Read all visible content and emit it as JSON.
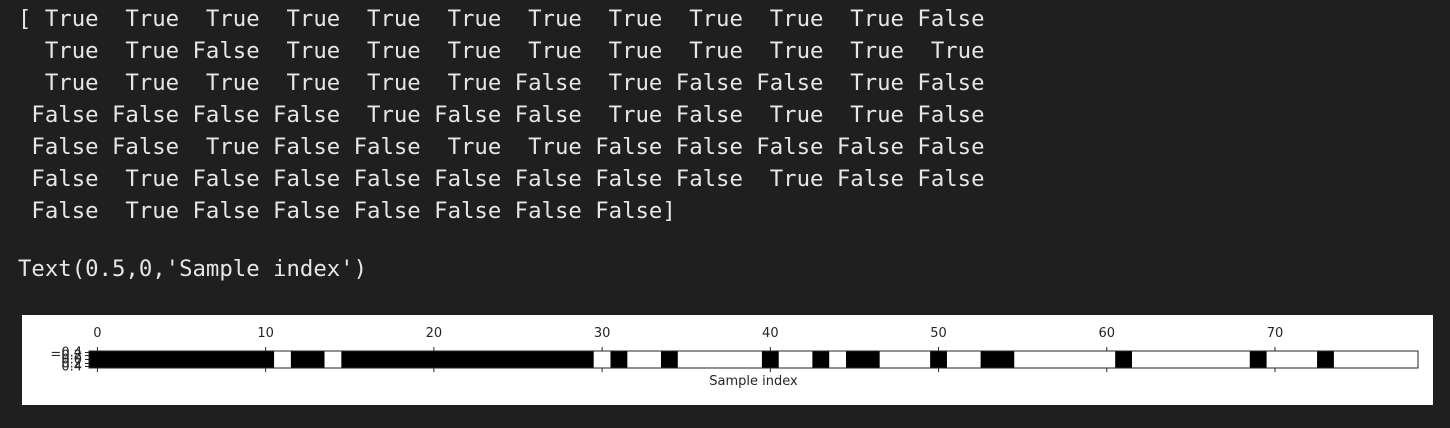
{
  "output": {
    "array_lines": [
      "[ True  True  True  True  True  True  True  True  True  True  True False",
      "  True  True False  True  True  True  True  True  True  True  True  True",
      "  True  True  True  True  True  True False  True False False  True False",
      " False False False False  True False False  True False  True  True False",
      " False False  True False False  True  True False False False False False",
      " False  True False False False False False False False  True False False",
      " False  True False False False False False False]"
    ],
    "repr_line": "Text(0.5,0,'Sample index')"
  },
  "chart_data": {
    "type": "heatmap",
    "xlabel": "Sample index",
    "x_ticks": [
      0,
      10,
      20,
      30,
      40,
      50,
      60,
      70
    ],
    "y_ticks_overlapping": [
      "−0.4",
      "−0.2",
      "0.0",
      "0.2",
      "0.4"
    ],
    "xlim": [
      -0.5,
      78.5
    ],
    "colormap": "gray_r",
    "values": [
      1,
      1,
      1,
      1,
      1,
      1,
      1,
      1,
      1,
      1,
      1,
      0,
      1,
      1,
      0,
      1,
      1,
      1,
      1,
      1,
      1,
      1,
      1,
      1,
      1,
      1,
      1,
      1,
      1,
      1,
      0,
      1,
      0,
      0,
      1,
      0,
      0,
      0,
      0,
      0,
      1,
      0,
      0,
      1,
      0,
      1,
      1,
      0,
      0,
      0,
      1,
      0,
      0,
      1,
      1,
      0,
      0,
      0,
      0,
      0,
      0,
      1,
      0,
      0,
      0,
      0,
      0,
      0,
      0,
      1,
      0,
      0,
      0,
      1,
      0,
      0,
      0,
      0,
      0,
      0
    ],
    "colors": {
      "true": "#000000",
      "false": "#ffffff",
      "axis": "#262626"
    }
  }
}
